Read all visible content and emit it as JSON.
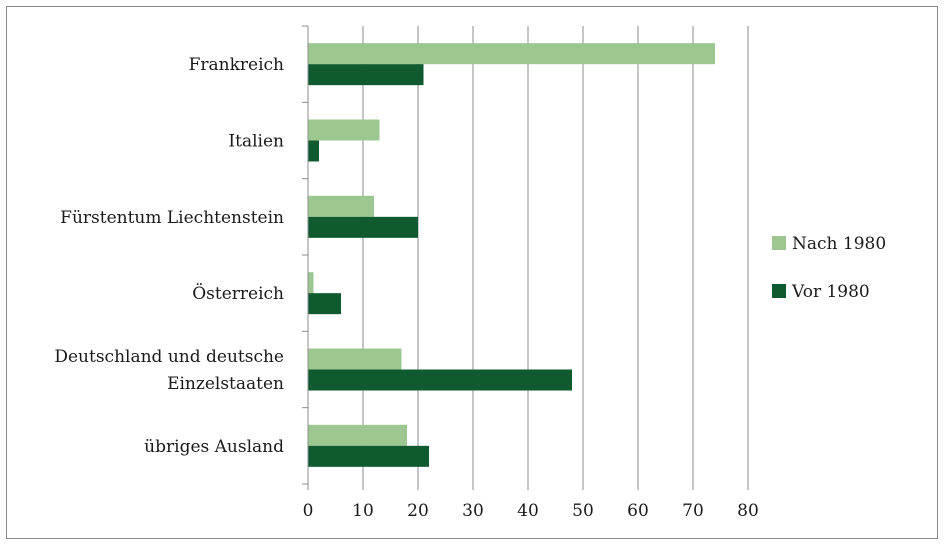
{
  "chart_data": {
    "type": "bar",
    "orientation": "horizontal",
    "categories": [
      [
        "Frankreich"
      ],
      [
        "Italien"
      ],
      [
        "Fürstentum Liechtenstein"
      ],
      [
        "Österreich"
      ],
      [
        "Deutschland und deutsche",
        "Einzelstaaten"
      ],
      [
        "übriges Ausland"
      ]
    ],
    "series": [
      {
        "name": "Nach 1980",
        "color": "#9cc790",
        "values": [
          74,
          13,
          12,
          1,
          17,
          18
        ]
      },
      {
        "name": "Vor 1980",
        "color": "#0f5a2e",
        "values": [
          21,
          2,
          20,
          6,
          48,
          22
        ]
      }
    ],
    "xlim": [
      0,
      80
    ],
    "xticks": [
      0,
      10,
      20,
      30,
      40,
      50,
      60,
      70,
      80
    ],
    "grid": "vertical",
    "legend": "right"
  }
}
